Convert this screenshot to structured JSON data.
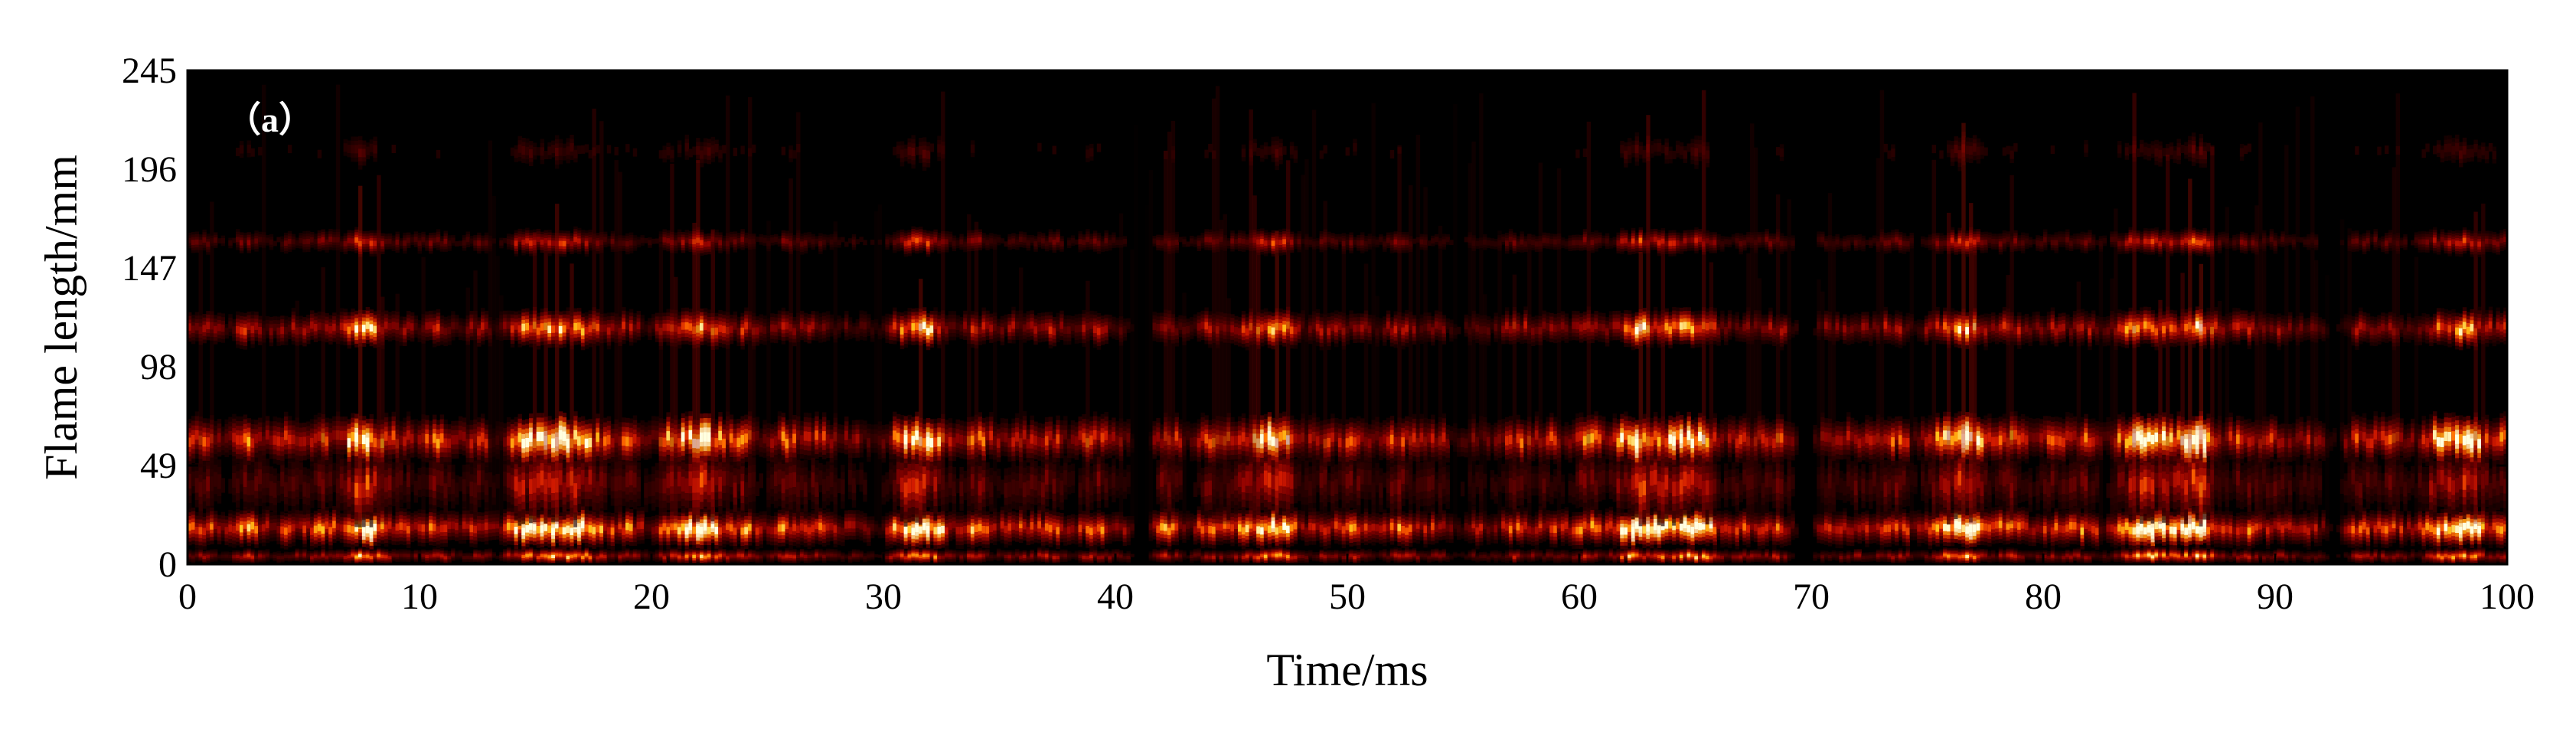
{
  "chart_data": {
    "type": "heatmap",
    "panel_label": "（a）",
    "xlabel": "Time/ms",
    "ylabel": "Flame length/mm",
    "xlim": [
      0,
      100
    ],
    "ylim": [
      0,
      245
    ],
    "x_ticks": [
      0,
      10,
      20,
      30,
      40,
      50,
      60,
      70,
      80,
      90,
      100
    ],
    "y_ticks": [
      0,
      49,
      98,
      147,
      196,
      245
    ],
    "grid": false,
    "colormap": [
      "#000000",
      "#3a0000",
      "#8b0000",
      "#d21a00",
      "#ff6a00",
      "#ffc21a",
      "#ffffe0"
    ],
    "bands": [
      {
        "y": 4,
        "width": 3,
        "intensity": 0.55
      },
      {
        "y": 18,
        "width": 7,
        "intensity": 0.95
      },
      {
        "y": 40,
        "width": 14,
        "intensity": 0.35
      },
      {
        "y": 62,
        "width": 9,
        "intensity": 0.85
      },
      {
        "y": 117,
        "width": 7,
        "intensity": 0.6
      },
      {
        "y": 160,
        "width": 5,
        "intensity": 0.35
      },
      {
        "y": 205,
        "width": 8,
        "intensity": 0.12
      }
    ],
    "bright_events_ms": [
      7.5,
      14.5,
      16.5,
      22.0,
      31.5,
      46.5,
      62.5,
      64.5,
      76.5,
      84.5,
      86.5,
      98.0
    ],
    "dark_gaps_ms": [
      13.5,
      29.0,
      41.0,
      55.0,
      70.0,
      92.0
    ]
  }
}
